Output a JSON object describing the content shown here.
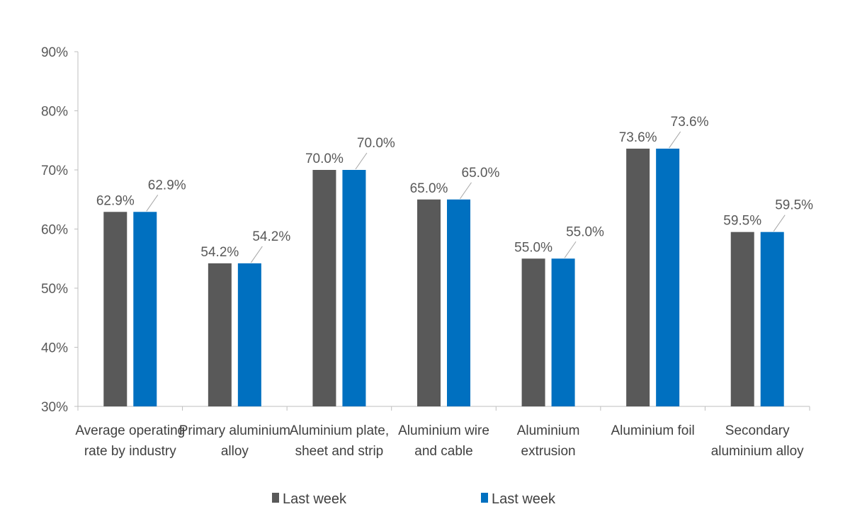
{
  "chart_data": {
    "type": "bar",
    "categories": [
      [
        "Average operating",
        "rate by industry"
      ],
      [
        "Primary aluminium",
        "alloy"
      ],
      [
        "Aluminium plate,",
        "sheet and strip"
      ],
      [
        "Aluminium wire",
        "and cable"
      ],
      [
        "Aluminium",
        "extrusion"
      ],
      [
        "Aluminium foil"
      ],
      [
        "Secondary",
        "aluminium alloy"
      ]
    ],
    "series": [
      {
        "name": "Last week",
        "color": "#595959",
        "values": [
          62.9,
          54.2,
          70.0,
          65.0,
          55.0,
          73.6,
          59.5
        ],
        "labels": [
          "62.9%",
          "54.2%",
          "70.0%",
          "65.0%",
          "55.0%",
          "73.6%",
          "59.5%"
        ]
      },
      {
        "name": "Last week",
        "color": "#0070C0",
        "values": [
          62.9,
          54.2,
          70.0,
          65.0,
          55.0,
          73.6,
          59.5
        ],
        "labels": [
          "62.9%",
          "54.2%",
          "70.0%",
          "65.0%",
          "55.0%",
          "73.6%",
          "59.5%"
        ]
      }
    ],
    "ylim": [
      30,
      90
    ],
    "yticks": [
      30,
      40,
      50,
      60,
      70,
      80,
      90
    ],
    "ytick_labels": [
      "30%",
      "40%",
      "50%",
      "60%",
      "70%",
      "80%",
      "90%"
    ],
    "title": "",
    "xlabel": "",
    "ylabel": "",
    "grid": false,
    "legend_position": "bottom-center"
  }
}
